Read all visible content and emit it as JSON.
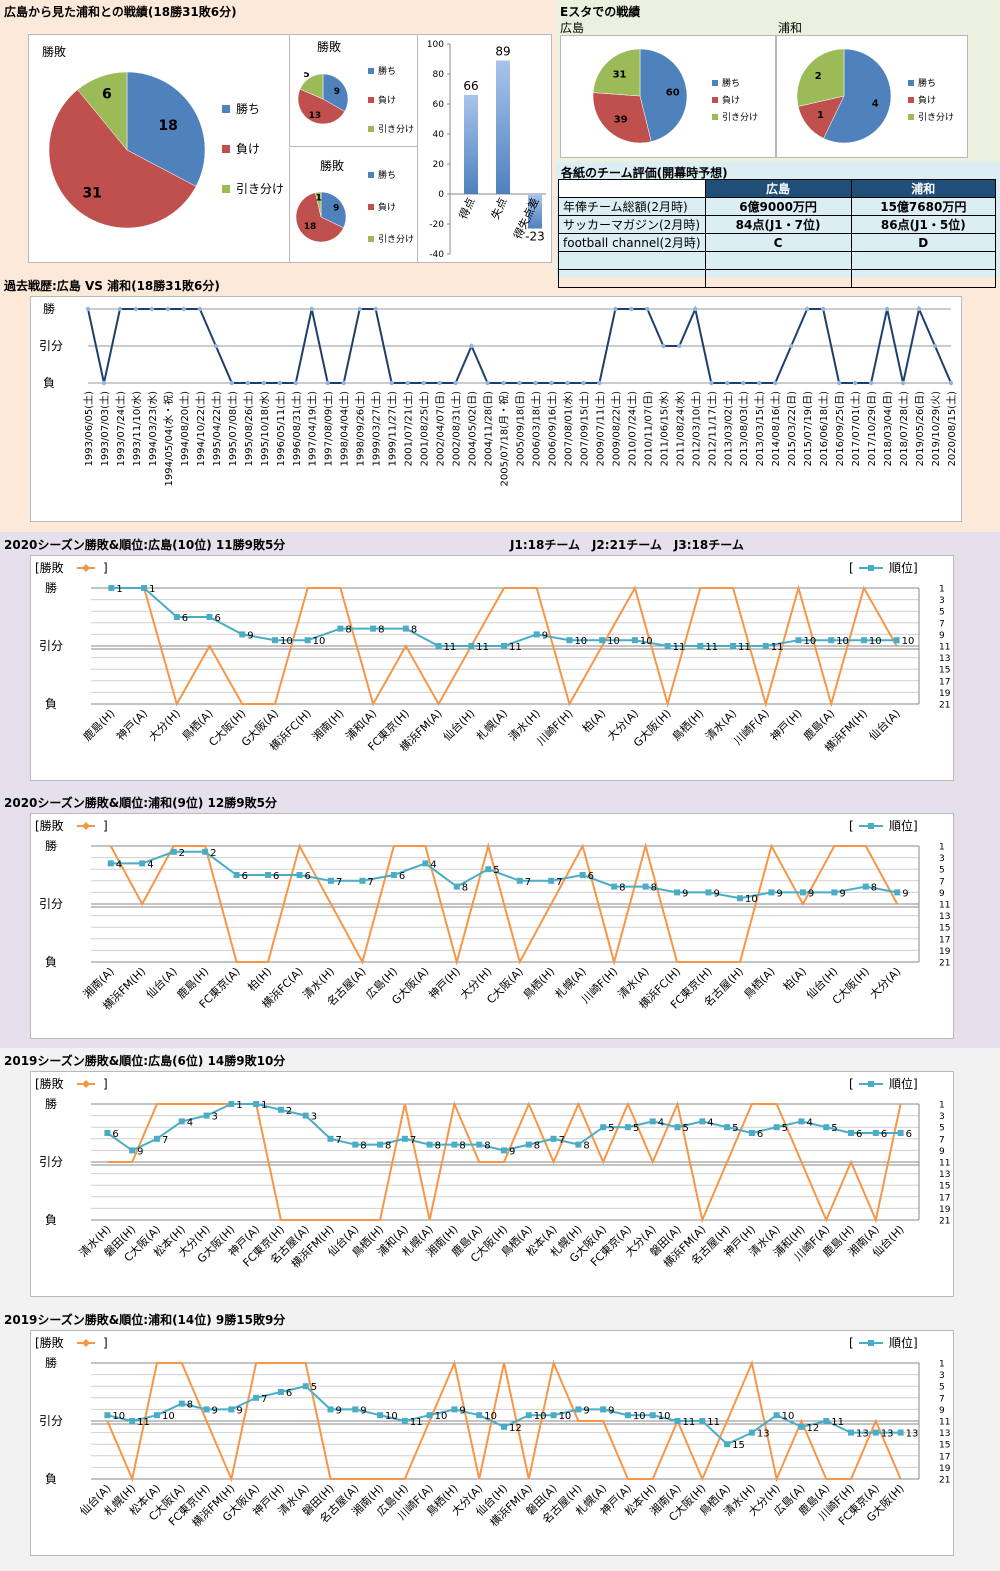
{
  "header": {
    "title": "広島から見た浦和との戦績(18勝31敗6分)",
    "estadium_title": "Eスタでの戦績",
    "hiroshima": "広島",
    "urawa": "浦和"
  },
  "pie_titles": {
    "big": "勝敗",
    "small1": "勝敗",
    "small2": "勝敗"
  },
  "legend": {
    "win": "勝ち",
    "lose": "負け",
    "draw": "引き分け"
  },
  "colors": {
    "win": "#4f81bd",
    "lose": "#c0504d",
    "draw": "#9bbb59",
    "result_line": "#f79646",
    "rank_line": "#4bacc6",
    "history_line": "#1f3f6b"
  },
  "ratings": {
    "title": "各紙のチーム評価(開幕時予想)",
    "header": [
      "",
      "広島",
      "浦和"
    ],
    "rows": [
      [
        "年俸チーム総額(2月時)",
        "6億9000万円",
        "15億7680万円"
      ],
      [
        "サッカーマガジン(2月時)",
        "84点(J1・7位)",
        "86点(J1・5位)"
      ],
      [
        "football channel(2月時)",
        "C",
        "D"
      ],
      [
        "",
        "",
        ""
      ],
      [
        "",
        "",
        ""
      ]
    ]
  },
  "history": {
    "title": "過去戦歴:広島 VS 浦和(18勝31敗6分)"
  },
  "league_info": "J1:18チーム　J2:21チーム　J3:18チーム",
  "result_labels": {
    "win": "勝",
    "draw": "引分",
    "lose": "負"
  },
  "legend_result": "[勝敗",
  "legend_rank": "順位]",
  "chart_data": [
    {
      "type": "pie",
      "title": "勝敗",
      "categories": [
        "勝ち",
        "負け",
        "引き分け"
      ],
      "values": [
        18,
        31,
        6
      ]
    },
    {
      "type": "pie",
      "title": "勝敗",
      "categories": [
        "勝ち",
        "負け",
        "引き分け"
      ],
      "values": [
        9,
        13,
        5
      ]
    },
    {
      "type": "pie",
      "title": "勝敗",
      "categories": [
        "勝ち",
        "負け",
        "引き分け"
      ],
      "values": [
        9,
        18,
        1
      ]
    },
    {
      "type": "bar",
      "categories": [
        "得点",
        "失点",
        "得失点差"
      ],
      "values": [
        66,
        89,
        -23
      ],
      "ylim": [
        -40,
        100
      ],
      "yticks": [
        -40,
        -20,
        0,
        20,
        40,
        60,
        80,
        100
      ]
    },
    {
      "type": "pie",
      "title": "広島",
      "categories": [
        "勝ち",
        "負け",
        "引き分け"
      ],
      "values": [
        60,
        39,
        31
      ]
    },
    {
      "type": "pie",
      "title": "浦和",
      "categories": [
        "勝ち",
        "負け",
        "引き分け"
      ],
      "values": [
        4,
        1,
        2
      ]
    },
    {
      "type": "line",
      "title": "過去戦歴:広島 VS 浦和(18勝31敗6分)",
      "yaxis_labels": [
        "勝",
        "引分",
        "負"
      ],
      "categories": [
        "1993/06/05(土)",
        "1993/07/03(土)",
        "1993/07/24(土)",
        "1993/11/10(水)",
        "1994/03/23(水)",
        "1994/05/04(水・祝)",
        "1994/08/20(土)",
        "1994/10/22(土)",
        "1995/04/22(土)",
        "1995/07/08(土)",
        "1995/08/26(土)",
        "1995/10/18(水)",
        "1996/05/11(土)",
        "1996/08/31(土)",
        "1997/04/19(土)",
        "1997/08/09(土)",
        "1998/04/04(土)",
        "1998/09/26(土)",
        "1999/03/27(土)",
        "1999/11/27(土)",
        "2001/07/21(土)",
        "2001/08/25(土)",
        "2002/04/07(日)",
        "2002/08/31(土)",
        "2004/05/02(日)",
        "2004/11/28(日)",
        "2005/07/18(月・祝)",
        "2005/09/18(日)",
        "2006/03/18(土)",
        "2006/09/16(土)",
        "2007/08/01(水)",
        "2007/09/15(土)",
        "2009/07/11(土)",
        "2009/08/22(土)",
        "2010/07/24(土)",
        "2010/11/07(日)",
        "2011/06/15(水)",
        "2011/08/24(水)",
        "2012/03/10(土)",
        "2012/11/17(土)",
        "2013/03/02(土)",
        "2013/08/03(土)",
        "2013/03/15(土)",
        "2014/08/16(土)",
        "2015/03/22(日)",
        "2015/07/19(日)",
        "2016/06/18(土)",
        "2016/09/25(日)",
        "2017/07/01(土)",
        "2017/10/29(日)",
        "2018/03/04(日)",
        "2018/07/28(土)",
        "2019/05/26(日)",
        "2019/10/29(火)",
        "2020/08/15(土)"
      ],
      "results": [
        2,
        0,
        2,
        2,
        2,
        2,
        2,
        2,
        1,
        0,
        0,
        0,
        0,
        0,
        2,
        0,
        0,
        2,
        2,
        0,
        0,
        0,
        0,
        0,
        1,
        0,
        0,
        0,
        0,
        0,
        0,
        0,
        0,
        2,
        2,
        2,
        1,
        1,
        2,
        0,
        0,
        0,
        0,
        0,
        1,
        2,
        2,
        0,
        0,
        0,
        2,
        0,
        2,
        1,
        0
      ]
    },
    {
      "type": "line",
      "title": "2020シーズン勝敗&順位:広島(10位) 11勝9敗5分",
      "result_labels": [
        "勝",
        "引分",
        "負"
      ],
      "rank_ticks": [
        1,
        3,
        5,
        7,
        9,
        11,
        13,
        15,
        17,
        19,
        21
      ],
      "categories": [
        "鹿島(H)",
        "神戸(A)",
        "大分(H)",
        "鳥栖(A)",
        "C大阪(H)",
        "G大阪(A)",
        "横浜FC(H)",
        "湘南(H)",
        "浦和(A)",
        "FC東京(H)",
        "横浜FM(A)",
        "仙台(H)",
        "札幌(A)",
        "清水(H)",
        "川崎F(H)",
        "柏(A)",
        "大分(A)",
        "G大阪(H)",
        "鳥栖(H)",
        "清水(A)",
        "川崎F(A)",
        "神戸(H)",
        "鹿島(A)",
        "横浜FM(H)",
        "仙台(A)"
      ],
      "series": [
        {
          "name": "勝敗",
          "values": [
            2,
            2,
            0,
            1,
            0,
            0,
            2,
            2,
            0,
            1,
            0,
            1,
            2,
            2,
            0,
            1,
            2,
            0,
            2,
            2,
            0,
            2,
            0,
            2,
            1
          ]
        },
        {
          "name": "順位",
          "values": [
            1,
            1,
            6,
            6,
            9,
            10,
            10,
            8,
            8,
            8,
            11,
            11,
            11,
            9,
            10,
            10,
            10,
            11,
            11,
            11,
            11,
            10,
            10,
            10,
            10
          ]
        }
      ]
    },
    {
      "type": "line",
      "title": "2020シーズン勝敗&順位:浦和(9位) 12勝9敗5分",
      "result_labels": [
        "勝",
        "引分",
        "負"
      ],
      "rank_ticks": [
        1,
        3,
        5,
        7,
        9,
        11,
        13,
        15,
        17,
        19,
        21
      ],
      "categories": [
        "湘南(A)",
        "横浜FM(H)",
        "仙台(A)",
        "鹿島(H)",
        "FC東京(A)",
        "柏(H)",
        "横浜FC(A)",
        "清水(H)",
        "名古屋(A)",
        "広島(H)",
        "G大阪(A)",
        "神戸(H)",
        "大分(H)",
        "C大阪(A)",
        "鳥栖(H)",
        "札幌(A)",
        "川崎F(H)",
        "清水(A)",
        "横浜FC(H)",
        "FC東京(H)",
        "名古屋(H)",
        "鳥栖(A)",
        "柏(A)",
        "仙台(H)",
        "C大阪(H)",
        "大分(A)"
      ],
      "series": [
        {
          "name": "勝敗",
          "values": [
            2,
            1,
            2,
            2,
            0,
            0,
            2,
            1,
            0,
            2,
            2,
            0,
            2,
            0,
            1,
            2,
            0,
            2,
            0,
            0,
            0,
            2,
            1,
            2,
            2,
            1
          ]
        },
        {
          "name": "順位",
          "values": [
            4,
            4,
            2,
            2,
            6,
            6,
            6,
            7,
            7,
            6,
            4,
            8,
            5,
            7,
            7,
            6,
            8,
            8,
            9,
            9,
            10,
            9,
            9,
            9,
            8,
            9
          ]
        }
      ]
    },
    {
      "type": "line",
      "title": "2019シーズン勝敗&順位:広島(6位) 14勝9敗10分",
      "result_labels": [
        "勝",
        "引分",
        "負"
      ],
      "rank_ticks": [
        1,
        3,
        5,
        7,
        9,
        11,
        13,
        15,
        17,
        19,
        21
      ],
      "categories": [
        "清水(H)",
        "磐田(H)",
        "C大阪(A)",
        "松本(H)",
        "大分(H)",
        "G大阪(H)",
        "神戸(A)",
        "FC東京(H)",
        "名古屋(A)",
        "横浜FM(H)",
        "仙台(A)",
        "鳥栖(H)",
        "浦和(A)",
        "札幌(A)",
        "湘南(H)",
        "鹿島(A)",
        "C大阪(H)",
        "鳥栖(A)",
        "松本(A)",
        "札幌(H)",
        "G大阪(A)",
        "FC東京(A)",
        "大分(A)",
        "磐田(A)",
        "横浜FM(A)",
        "名古屋(H)",
        "神戸(H)",
        "清水(A)",
        "浦和(H)",
        "川崎F(A)",
        "鹿島(H)",
        "湘南(A)",
        "仙台(H)"
      ],
      "series": [
        {
          "name": "勝敗",
          "values": [
            1,
            1,
            2,
            2,
            2,
            2,
            2,
            0,
            0,
            0,
            0,
            0,
            2,
            0,
            2,
            1,
            1,
            2,
            1,
            2,
            1,
            2,
            1,
            2,
            0,
            1,
            2,
            2,
            1,
            0,
            1,
            0,
            2
          ]
        },
        {
          "name": "順位",
          "values": [
            6,
            9,
            7,
            4,
            3,
            1,
            1,
            2,
            3,
            7,
            8,
            8,
            7,
            8,
            8,
            8,
            9,
            8,
            7,
            8,
            5,
            5,
            4,
            5,
            4,
            5,
            6,
            5,
            4,
            5,
            6,
            6,
            6
          ]
        }
      ]
    },
    {
      "type": "line",
      "title": "2019シーズン勝敗&順位:浦和(14位) 9勝15敗9分",
      "result_labels": [
        "勝",
        "引分",
        "負"
      ],
      "rank_ticks": [
        1,
        3,
        5,
        7,
        9,
        11,
        13,
        15,
        17,
        19,
        21
      ],
      "categories": [
        "仙台(A)",
        "札幌(H)",
        "松本(A)",
        "C大阪(A)",
        "FC東京(H)",
        "横浜FM(H)",
        "G大阪(A)",
        "神戸(H)",
        "清水(A)",
        "磐田(H)",
        "名古屋(A)",
        "湘南(H)",
        "広島(H)",
        "川崎F(A)",
        "鳥栖(H)",
        "大分(A)",
        "仙台(H)",
        "横浜FM(A)",
        "磐田(A)",
        "名古屋(H)",
        "札幌(A)",
        "神戸(A)",
        "松本(H)",
        "湘南(A)",
        "C大阪(H)",
        "鳥栖(A)",
        "清水(H)",
        "大分(H)",
        "広島(A)",
        "鹿島(A)",
        "川崎F(H)",
        "FC東京(A)",
        "G大阪(H)"
      ],
      "series": [
        {
          "name": "勝敗",
          "values": [
            1,
            0,
            2,
            2,
            1,
            0,
            2,
            2,
            2,
            0,
            0,
            0,
            0,
            1,
            2,
            0,
            2,
            0,
            2,
            1,
            1,
            0,
            0,
            1,
            0,
            1,
            2,
            0,
            1,
            0,
            0,
            1,
            0
          ]
        },
        {
          "name": "順位",
          "values": [
            10,
            11,
            10,
            8,
            9,
            9,
            7,
            6,
            5,
            9,
            9,
            10,
            11,
            10,
            9,
            10,
            12,
            10,
            10,
            9,
            9,
            10,
            10,
            11,
            11,
            15,
            13,
            10,
            12,
            11,
            13,
            13,
            13
          ]
        }
      ]
    }
  ]
}
